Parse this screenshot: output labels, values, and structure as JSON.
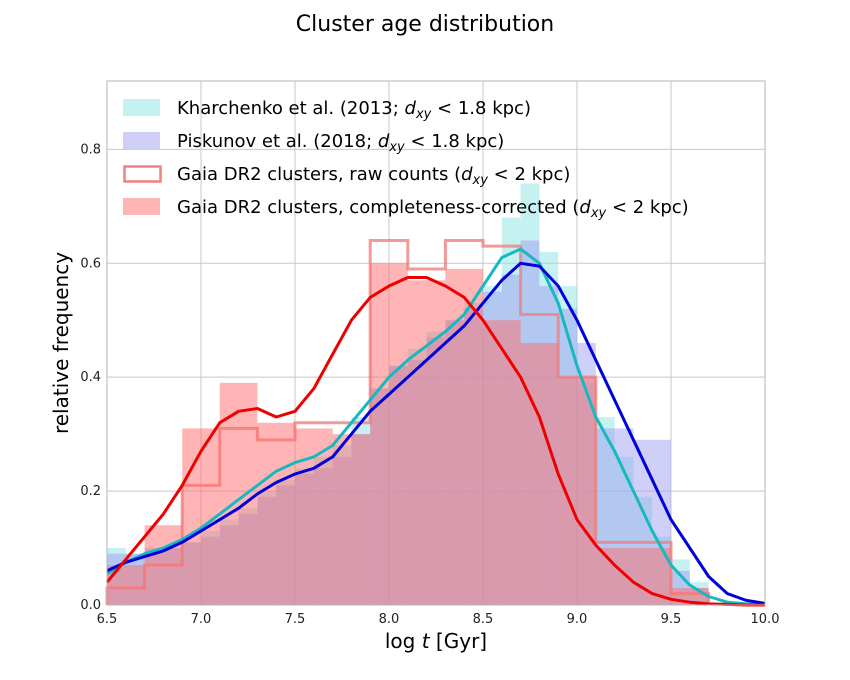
{
  "chart_data": {
    "type": "histogram",
    "title": "Cluster age distribution",
    "xlabel_prefix": "log ",
    "xlabel_var": "t",
    "xlabel_suffix": " [Gyr]",
    "ylabel": "relative frequency",
    "xlim": [
      6.5,
      10.0
    ],
    "ylim": [
      0.0,
      0.92
    ],
    "xticks": [
      6.5,
      7.0,
      7.5,
      8.0,
      8.5,
      9.0,
      9.5,
      10.0
    ],
    "xtick_labels": [
      "6.5",
      "7.0",
      "7.5",
      "8.0",
      "8.5",
      "9.0",
      "9.5",
      "10.0"
    ],
    "yticks": [
      0.0,
      0.2,
      0.4,
      0.6,
      0.8
    ],
    "ytick_labels": [
      "0.0",
      "0.2",
      "0.4",
      "0.6",
      "0.8"
    ],
    "grid": true,
    "legend_position": "top-left",
    "series": [
      {
        "name": "Kharchenko et al. (2013; d_xy < 1.8 kpc)",
        "legend_parts": [
          "Kharchenko et al. (2013; ",
          "d",
          "xy",
          " < 1.8 kpc)"
        ],
        "kind": "hist-filled",
        "color": "#8ee3e3",
        "opacity": 0.5,
        "edges": [
          6.5,
          6.6,
          6.7,
          6.8,
          6.9,
          7.0,
          7.1,
          7.2,
          7.3,
          7.4,
          7.5,
          7.6,
          7.7,
          7.8,
          7.9,
          8.0,
          8.1,
          8.2,
          8.3,
          8.4,
          8.5,
          8.6,
          8.7,
          8.8,
          8.9,
          9.0,
          9.1,
          9.2,
          9.3,
          9.4,
          9.5,
          9.6,
          9.7
        ],
        "values": [
          0.1,
          0.09,
          0.09,
          0.1,
          0.11,
          0.13,
          0.15,
          0.17,
          0.2,
          0.22,
          0.24,
          0.26,
          0.28,
          0.33,
          0.38,
          0.42,
          0.45,
          0.48,
          0.5,
          0.53,
          0.56,
          0.68,
          0.74,
          0.62,
          0.56,
          0.39,
          0.33,
          0.26,
          0.19,
          0.12,
          0.08,
          0.04
        ]
      },
      {
        "name": "Piskunov et al. (2018; d_xy < 1.8 kpc)",
        "legend_parts": [
          "Piskunov et al. (2018; ",
          "d",
          "xy",
          " < 1.8 kpc)"
        ],
        "kind": "hist-filled",
        "color": "#9f9ff0",
        "opacity": 0.5,
        "edges": [
          6.5,
          6.6,
          6.7,
          6.8,
          6.9,
          7.0,
          7.1,
          7.2,
          7.3,
          7.4,
          7.5,
          7.6,
          7.7,
          7.8,
          7.9,
          8.0,
          8.1,
          8.2,
          8.3,
          8.4,
          8.5,
          8.6,
          8.7,
          8.8,
          8.9,
          9.0,
          9.1,
          9.2,
          9.3,
          9.4,
          9.5,
          9.6,
          9.7
        ],
        "values": [
          0.09,
          0.09,
          0.1,
          0.1,
          0.11,
          0.12,
          0.14,
          0.16,
          0.19,
          0.21,
          0.23,
          0.24,
          0.26,
          0.3,
          0.38,
          0.42,
          0.43,
          0.47,
          0.5,
          0.52,
          0.55,
          0.58,
          0.64,
          0.56,
          0.52,
          0.46,
          0.31,
          0.31,
          0.29,
          0.29,
          0.06,
          0.03
        ]
      },
      {
        "name": "Gaia DR2 clusters, raw counts (d_xy < 2 kpc)",
        "legend_parts": [
          "Gaia DR2 clusters, raw counts (",
          "d",
          "xy",
          " < 2 kpc)"
        ],
        "kind": "hist-step",
        "color": "#f08080",
        "opacity": 0.8,
        "edges": [
          6.5,
          6.7,
          6.9,
          7.1,
          7.3,
          7.5,
          7.7,
          7.9,
          8.1,
          8.3,
          8.5,
          8.7,
          8.9,
          9.1,
          9.3,
          9.5,
          9.7
        ],
        "values": [
          0.03,
          0.07,
          0.21,
          0.31,
          0.29,
          0.32,
          0.32,
          0.64,
          0.59,
          0.64,
          0.63,
          0.51,
          0.4,
          0.11,
          0.11,
          0.02
        ]
      },
      {
        "name": "Gaia DR2 clusters, completeness-corrected (d_xy < 2 kpc)",
        "legend_parts": [
          "Gaia DR2 clusters, completeness-corrected (",
          "d",
          "xy",
          " < 2 kpc)"
        ],
        "kind": "hist-filled",
        "color": "#ff6b6b",
        "opacity": 0.5,
        "edges": [
          6.5,
          6.7,
          6.9,
          7.1,
          7.3,
          7.5,
          7.7,
          7.9,
          8.1,
          8.3,
          8.5,
          8.7,
          8.9,
          9.1,
          9.3,
          9.5,
          9.7
        ],
        "values": [
          0.07,
          0.14,
          0.31,
          0.39,
          0.32,
          0.31,
          0.3,
          0.6,
          0.57,
          0.59,
          0.5,
          0.46,
          0.4,
          0.1,
          0.1,
          0.03
        ]
      }
    ],
    "kde_curves": [
      {
        "color": "#17b8c0",
        "x": [
          6.5,
          6.6,
          6.7,
          6.8,
          6.9,
          7.0,
          7.1,
          7.2,
          7.3,
          7.4,
          7.5,
          7.6,
          7.7,
          7.8,
          7.9,
          8.0,
          8.1,
          8.2,
          8.3,
          8.4,
          8.5,
          8.6,
          8.7,
          8.8,
          8.9,
          9.0,
          9.1,
          9.2,
          9.3,
          9.4,
          9.5,
          9.6,
          9.7,
          9.8,
          9.9,
          10.0
        ],
        "y": [
          0.055,
          0.075,
          0.09,
          0.1,
          0.115,
          0.135,
          0.16,
          0.185,
          0.21,
          0.235,
          0.25,
          0.26,
          0.28,
          0.32,
          0.36,
          0.4,
          0.43,
          0.455,
          0.48,
          0.51,
          0.56,
          0.61,
          0.625,
          0.6,
          0.53,
          0.42,
          0.33,
          0.27,
          0.2,
          0.13,
          0.07,
          0.035,
          0.015,
          0.005,
          0.002,
          0.0
        ]
      },
      {
        "color": "#0000dd",
        "x": [
          6.5,
          6.6,
          6.7,
          6.8,
          6.9,
          7.0,
          7.1,
          7.2,
          7.3,
          7.4,
          7.5,
          7.6,
          7.7,
          7.8,
          7.9,
          8.0,
          8.1,
          8.2,
          8.3,
          8.4,
          8.5,
          8.6,
          8.7,
          8.8,
          8.9,
          9.0,
          9.1,
          9.2,
          9.3,
          9.4,
          9.5,
          9.6,
          9.7,
          9.8,
          9.9,
          10.0
        ],
        "y": [
          0.06,
          0.075,
          0.085,
          0.095,
          0.11,
          0.13,
          0.15,
          0.17,
          0.195,
          0.215,
          0.23,
          0.24,
          0.26,
          0.3,
          0.34,
          0.37,
          0.4,
          0.43,
          0.46,
          0.49,
          0.53,
          0.57,
          0.6,
          0.595,
          0.56,
          0.5,
          0.43,
          0.36,
          0.29,
          0.22,
          0.15,
          0.1,
          0.05,
          0.02,
          0.008,
          0.003
        ]
      },
      {
        "color": "#ee0000",
        "x": [
          6.5,
          6.6,
          6.7,
          6.8,
          6.9,
          7.0,
          7.1,
          7.2,
          7.3,
          7.4,
          7.5,
          7.6,
          7.7,
          7.8,
          7.9,
          8.0,
          8.1,
          8.2,
          8.3,
          8.4,
          8.5,
          8.6,
          8.7,
          8.8,
          8.9,
          9.0,
          9.1,
          9.2,
          9.3,
          9.4,
          9.5,
          9.6,
          9.7,
          9.8,
          9.9,
          10.0
        ],
        "y": [
          0.04,
          0.08,
          0.12,
          0.16,
          0.21,
          0.27,
          0.32,
          0.34,
          0.345,
          0.33,
          0.34,
          0.38,
          0.44,
          0.5,
          0.54,
          0.56,
          0.575,
          0.575,
          0.56,
          0.54,
          0.5,
          0.45,
          0.4,
          0.33,
          0.23,
          0.15,
          0.105,
          0.07,
          0.04,
          0.02,
          0.01,
          0.005,
          0.002,
          0.001,
          0.0,
          0.0
        ]
      }
    ]
  }
}
